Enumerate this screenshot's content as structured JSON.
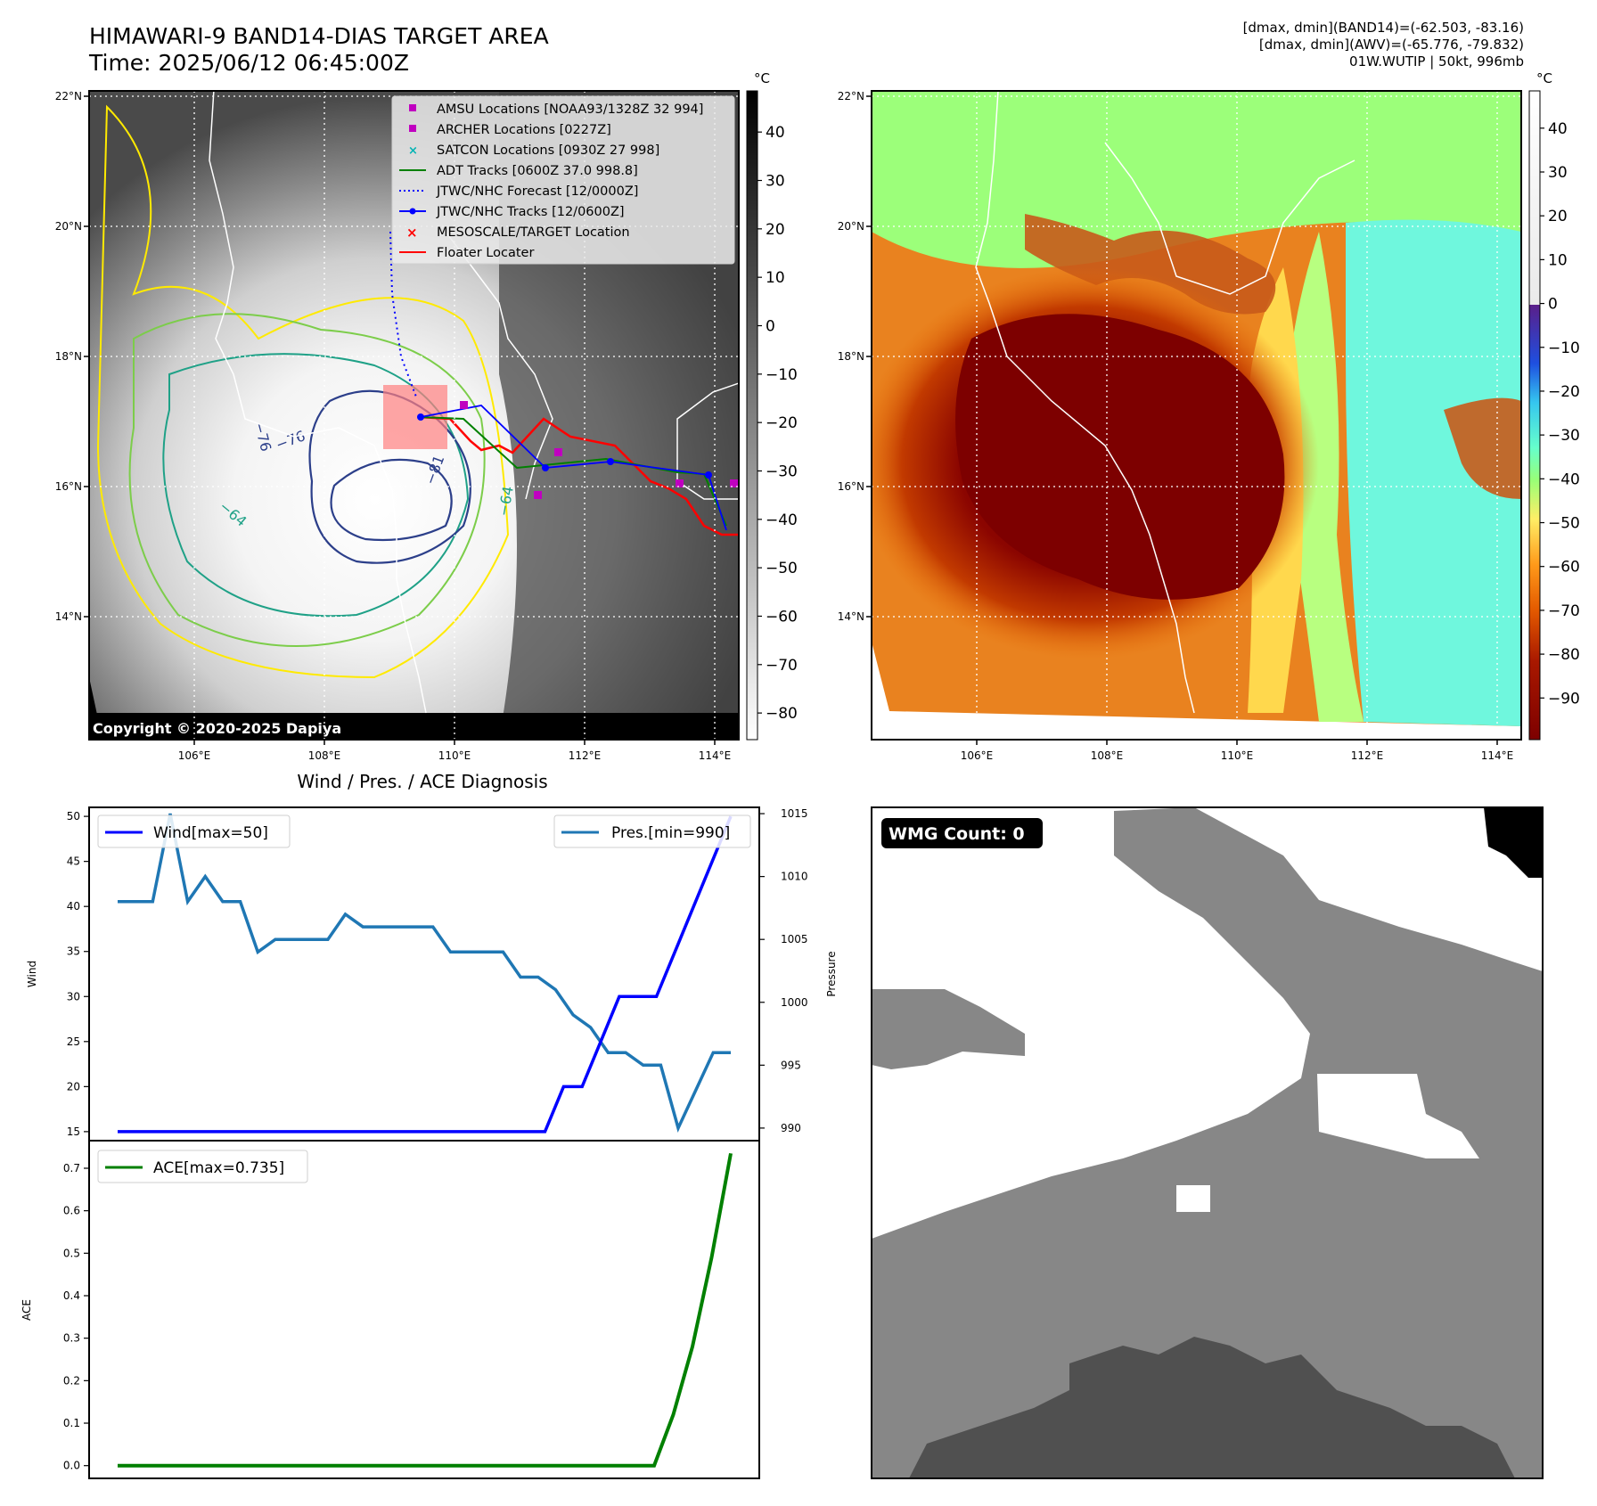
{
  "header": {
    "title_line1": "HIMAWARI-9 BAND14-DIAS TARGET AREA",
    "title_line2": "Time: 2025/06/12 06:45:00Z",
    "info_line1": "[dmax, dmin](BAND14)=(-62.503, -83.16)",
    "info_line2": "[dmax, dmin](AWV)=(-65.776, -79.832)",
    "info_line3": "01W.WUTIP | 50kt, 996mb"
  },
  "map": {
    "lon_ticks": [
      "106°E",
      "108°E",
      "110°E",
      "112°E",
      "114°E"
    ],
    "lat_ticks": [
      "22°N",
      "20°N",
      "18°N",
      "16°N",
      "14°N"
    ],
    "copyright": "Copyright © 2020-2025 Dapiya",
    "contour_labels": [
      "−76",
      "−76",
      "−81",
      "−64",
      "−64"
    ],
    "legend": [
      {
        "label": "AMSU Locations [NOAA93/1328Z 32 994]",
        "marker": "square",
        "color": "#c000c0"
      },
      {
        "label": "ARCHER Locations [0227Z]",
        "marker": "square",
        "color": "#c000c0"
      },
      {
        "label": "SATCON Locations [0930Z 27 998]",
        "marker": "x",
        "color": "#00b3b3"
      },
      {
        "label": "ADT Tracks [0600Z 37.0 998.8]",
        "marker": "line",
        "color": "#008000"
      },
      {
        "label": "JTWC/NHC Forecast [12/0000Z]",
        "marker": "dotted",
        "color": "#0000ff"
      },
      {
        "label": "JTWC/NHC Tracks [12/0600Z]",
        "marker": "line-dot",
        "color": "#0000ff"
      },
      {
        "label": "MESOSCALE/TARGET Location",
        "marker": "x",
        "color": "#ff0000"
      },
      {
        "label": "Floater Locater",
        "marker": "line",
        "color": "#ff0000"
      }
    ],
    "unit": "°C",
    "gray_colorbar_ticks": [
      "40",
      "30",
      "20",
      "10",
      "0",
      "−10",
      "−20",
      "−30",
      "−40",
      "−50",
      "−60",
      "−70",
      "−80"
    ],
    "color_colorbar_ticks": [
      "40",
      "30",
      "20",
      "10",
      "0",
      "−10",
      "−20",
      "−30",
      "−40",
      "−50",
      "−60",
      "−70",
      "−80",
      "−90"
    ]
  },
  "chart_data": [
    {
      "type": "line",
      "title": "Wind / Pres. / ACE Diagnosis",
      "ylabel": "Wind",
      "y2label": "Pressure",
      "ylim": [
        14,
        51
      ],
      "y2lim": [
        989,
        1015.5
      ],
      "yticks": [
        15,
        20,
        25,
        30,
        35,
        40,
        45,
        50
      ],
      "y2ticks": [
        990,
        995,
        1000,
        1005,
        1010,
        1015
      ],
      "series": [
        {
          "name": "Wind[max=50]",
          "axis": "left",
          "color": "#0000ff",
          "values": [
            15,
            15,
            15,
            15,
            15,
            15,
            15,
            15,
            15,
            15,
            15,
            15,
            15,
            15,
            15,
            15,
            15,
            15,
            15,
            15,
            15,
            15,
            15,
            15,
            20,
            20,
            25,
            30,
            30,
            30,
            35,
            40,
            45,
            50
          ]
        },
        {
          "name": "Pres.[min=990]",
          "axis": "right",
          "color": "#1f77b4",
          "values": [
            1008,
            1008,
            1008,
            1015,
            1008,
            1010,
            1008,
            1008,
            1004,
            1005,
            1005,
            1005,
            1005,
            1007,
            1006,
            1006,
            1006,
            1006,
            1006,
            1004,
            1004,
            1004,
            1004,
            1002,
            1002,
            1001,
            999,
            998,
            996,
            996,
            995,
            995,
            990,
            993,
            996,
            996
          ]
        }
      ]
    },
    {
      "type": "line",
      "ylabel": "ACE",
      "ylim": [
        -0.03,
        0.765
      ],
      "yticks": [
        0.0,
        0.1,
        0.2,
        0.3,
        0.4,
        0.5,
        0.6,
        0.7
      ],
      "series": [
        {
          "name": "ACE[max=0.735]",
          "color": "#008000",
          "values": [
            0,
            0,
            0,
            0,
            0,
            0,
            0,
            0,
            0,
            0,
            0,
            0,
            0,
            0,
            0,
            0,
            0,
            0,
            0,
            0,
            0,
            0,
            0,
            0,
            0,
            0,
            0,
            0,
            0,
            0.12,
            0.28,
            0.49,
            0.735
          ]
        }
      ]
    }
  ],
  "wmg": {
    "label": "WMG Count: 0"
  }
}
